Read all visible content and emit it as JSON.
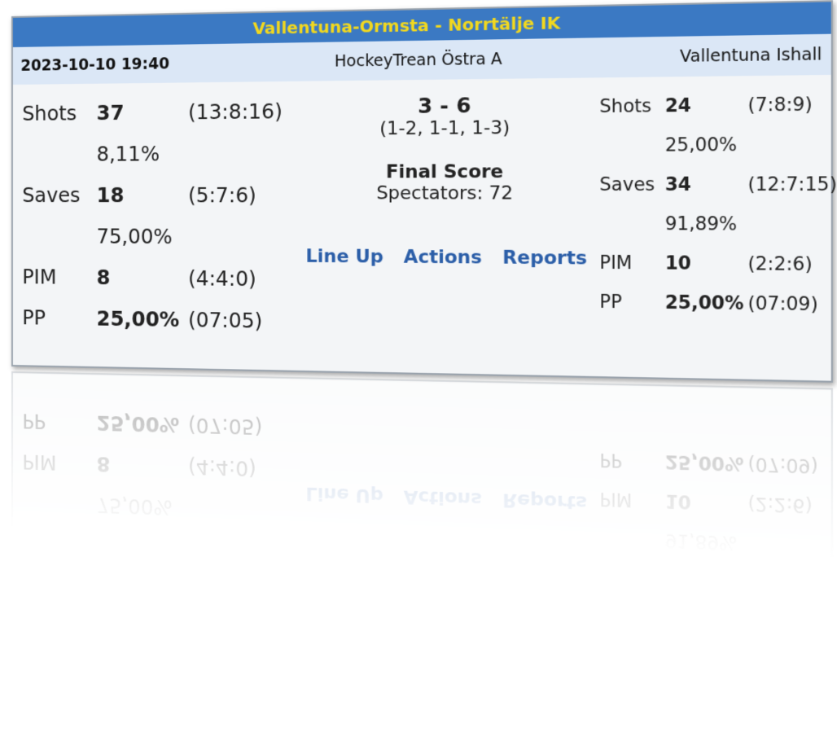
{
  "header": {
    "title": "Vallentuna-Ormsta - Norrtälje IK"
  },
  "info": {
    "datetime": "2023-10-10 19:40",
    "league": "HockeyTrean Östra A",
    "venue": "Vallentuna Ishall"
  },
  "home": {
    "rows": [
      {
        "label": "Shots",
        "value": "37",
        "periods": "(13:8:16)",
        "percent": "8,11%"
      },
      {
        "label": "Saves",
        "value": "18",
        "periods": "(5:7:6)",
        "percent": "75,00%"
      },
      {
        "label": "PIM",
        "value": "8",
        "periods": "(4:4:0)"
      },
      {
        "label": "PP",
        "value": "25,00%",
        "periods": "(07:05)"
      }
    ]
  },
  "center": {
    "score": "3 - 6",
    "periods": "(1-2, 1-1, 1-3)",
    "status": "Final Score",
    "spectators": "Spectators: 72",
    "links": [
      "Line Up",
      "Actions",
      "Reports"
    ]
  },
  "away": {
    "rows": [
      {
        "label": "Shots",
        "value": "24",
        "periods": "(7:8:9)",
        "percent": "25,00%"
      },
      {
        "label": "Saves",
        "value": "34",
        "periods": "(12:7:15)",
        "percent": "91,89%"
      },
      {
        "label": "PIM",
        "value": "10",
        "periods": "(2:2:6)"
      },
      {
        "label": "PP",
        "value": "25,00%",
        "periods": "(07:09)"
      }
    ]
  }
}
